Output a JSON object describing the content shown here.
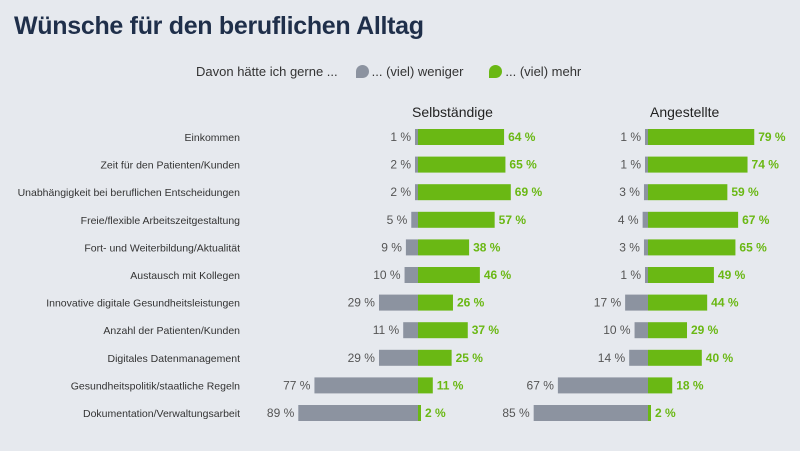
{
  "title": "Wünsche für den beruflichen Alltag",
  "legend": {
    "intro": "Davon hätte ich gerne ...",
    "less": "... (viel) weniger",
    "more": "... (viel) mehr"
  },
  "colors": {
    "less": "#8c93a0",
    "more": "#6ab814",
    "title": "#1f2f4a",
    "background": "#e6e9ee"
  },
  "chart_data": {
    "type": "bar",
    "subtype": "diverging-horizontal",
    "title": "Wünsche für den beruflichen Alltag",
    "categories": [
      "Einkommen",
      "Zeit für den Patienten/Kunden",
      "Unabhängigkeit bei beruflichen Entscheidungen",
      "Freie/flexible Arbeitszeitgestaltung",
      "Fort- und Weiterbildung/Aktualität",
      "Austausch mit Kollegen",
      "Innovative digitale Gesundheitsleistungen",
      "Anzahl der Patienten/Kunden",
      "Digitales Datenmanagement",
      "Gesundheitspolitik/staatliche Regeln",
      "Dokumentation/Verwaltungsarbeit"
    ],
    "panels": [
      {
        "name": "Selbständige",
        "series": [
          {
            "name": "... (viel) weniger",
            "values": [
              1,
              2,
              2,
              5,
              9,
              10,
              29,
              11,
              29,
              77,
              89
            ]
          },
          {
            "name": "... (viel) mehr",
            "values": [
              64,
              65,
              69,
              57,
              38,
              46,
              26,
              37,
              25,
              11,
              2
            ]
          }
        ]
      },
      {
        "name": "Angestellte",
        "series": [
          {
            "name": "... (viel) weniger",
            "values": [
              1,
              1,
              3,
              4,
              3,
              1,
              17,
              10,
              14,
              67,
              85
            ]
          },
          {
            "name": "... (viel) mehr",
            "values": [
              79,
              74,
              59,
              67,
              65,
              49,
              44,
              29,
              40,
              18,
              2
            ]
          }
        ]
      }
    ],
    "unit": "%"
  }
}
